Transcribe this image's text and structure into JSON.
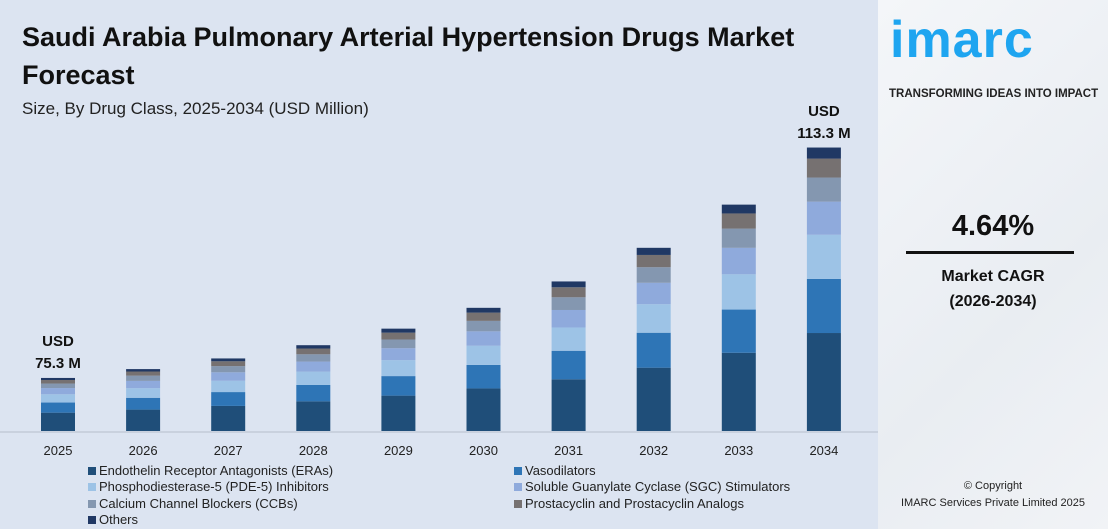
{
  "title": "Saudi Arabia Pulmonary Arterial Hypertension Drugs Market Forecast",
  "subtitle": "Size, By Drug Class, 2025-2034 (USD Million)",
  "chart_data": {
    "type": "bar",
    "stacked": true,
    "title": "Saudi Arabia Pulmonary Arterial Hypertension Drugs Market Forecast",
    "subtitle": "Size, By Drug Class, 2025-2034 (USD Million)",
    "categories": [
      "2025",
      "2026",
      "2027",
      "2028",
      "2029",
      "2030",
      "2031",
      "2032",
      "2033",
      "2034"
    ],
    "totals": [
      75.3,
      78.8,
      82.4,
      86.2,
      90.2,
      94.4,
      98.8,
      103.4,
      108.2,
      113.3
    ],
    "annotations": [
      {
        "category": "2025",
        "line1": "USD",
        "line2": "75.3 M"
      },
      {
        "category": "2034",
        "line1": "USD",
        "line2": "113.3 M"
      }
    ],
    "series": [
      {
        "name": "Endothelin Receptor Antagonists (ERAs)",
        "share": 0.346,
        "color": "#1f4e79"
      },
      {
        "name": "Vasodilators",
        "share": 0.191,
        "color": "#2e75b6"
      },
      {
        "name": "Phosphodiesterase-5 (PDE-5) Inhibitors",
        "share": 0.156,
        "color": "#9dc3e6"
      },
      {
        "name": "Soluble Guanylate Cyclase (SGC) Stimulators",
        "share": 0.117,
        "color": "#8faadc"
      },
      {
        "name": "Calcium Channel Blockers (CCBs)",
        "share": 0.085,
        "color": "#8497b0"
      },
      {
        "name": "Prostacyclin and Prostacyclin Analogs",
        "share": 0.067,
        "color": "#767171"
      },
      {
        "name": "Others",
        "share": 0.039,
        "color": "#203864"
      }
    ],
    "legend_position": "bottom",
    "grid": false
  },
  "logo": {
    "text": "imarc",
    "tagline": "TRANSFORMING IDEAS INTO IMPACT",
    "color": "#1ea5f0"
  },
  "cagr": {
    "value": "4.64%",
    "label": "Market CAGR",
    "period": "(2026-2034)"
  },
  "copyright": {
    "line1": "© Copyright",
    "line2": "IMARC Services Private Limited 2025"
  }
}
